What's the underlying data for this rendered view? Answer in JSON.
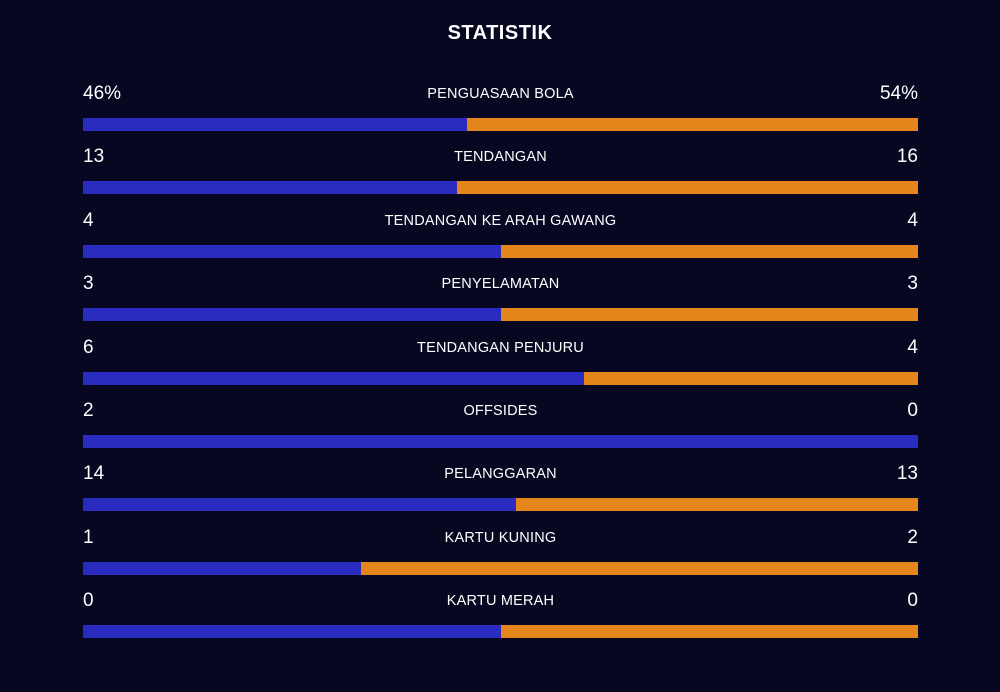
{
  "title": "STATISTIK",
  "colors": {
    "background": "#080722",
    "home": "#2a2bc0",
    "away": "#e4861c"
  },
  "stats": [
    {
      "label": "PENGUASAAN BOLA",
      "home_display": "46%",
      "away_display": "54%",
      "home": 46,
      "away": 54
    },
    {
      "label": "TENDANGAN",
      "home_display": "13",
      "away_display": "16",
      "home": 13,
      "away": 16
    },
    {
      "label": "TENDANGAN KE ARAH GAWANG",
      "home_display": "4",
      "away_display": "4",
      "home": 4,
      "away": 4
    },
    {
      "label": "PENYELAMATAN",
      "home_display": "3",
      "away_display": "3",
      "home": 3,
      "away": 3
    },
    {
      "label": "TENDANGAN PENJURU",
      "home_display": "6",
      "away_display": "4",
      "home": 6,
      "away": 4
    },
    {
      "label": "OFFSIDES",
      "home_display": "2",
      "away_display": "0",
      "home": 2,
      "away": 0
    },
    {
      "label": "PELANGGARAN",
      "home_display": "14",
      "away_display": "13",
      "home": 14,
      "away": 13
    },
    {
      "label": "KARTU KUNING",
      "home_display": "1",
      "away_display": "2",
      "home": 1,
      "away": 2
    },
    {
      "label": "KARTU MERAH",
      "home_display": "0",
      "away_display": "0",
      "home": 0,
      "away": 0
    }
  ]
}
